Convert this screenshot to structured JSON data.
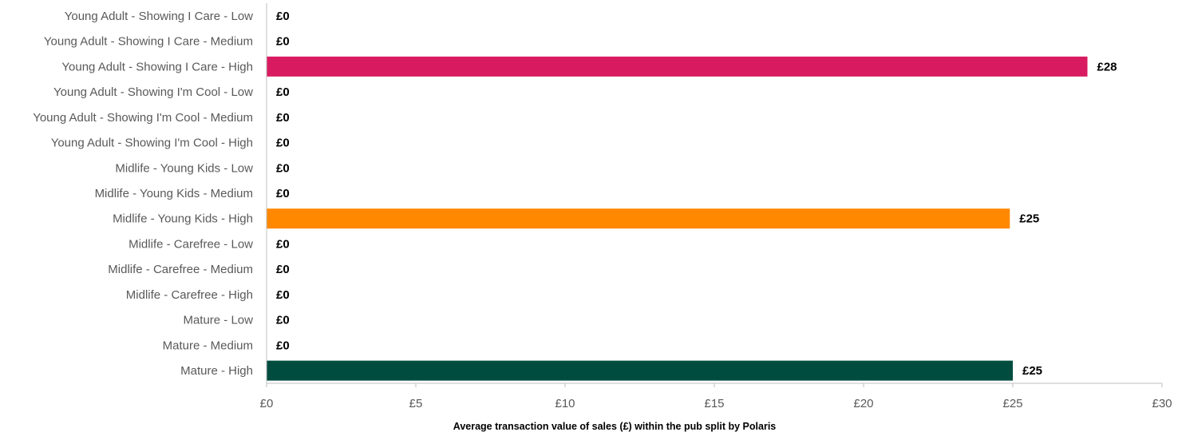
{
  "chart_data": {
    "type": "bar",
    "orientation": "horizontal",
    "title": "",
    "xlabel": "Average transaction value of sales (£) within the pub split by Polaris",
    "ylabel": "",
    "xlim": [
      0,
      30
    ],
    "x_ticks": [
      0,
      5,
      10,
      15,
      20,
      25,
      30
    ],
    "x_tick_labels": [
      "£0",
      "£5",
      "£10",
      "£15",
      "£20",
      "£25",
      "£30"
    ],
    "grid": false,
    "legend": "none",
    "categories": [
      "Young Adult - Showing I Care - Low",
      "Young Adult - Showing I Care - Medium",
      "Young Adult - Showing I Care - High",
      "Young Adult - Showing I'm Cool - Low",
      "Young Adult - Showing I'm Cool - Medium",
      "Young Adult - Showing I'm Cool - High",
      "Midlife - Young Kids - Low",
      "Midlife - Young Kids - Medium",
      "Midlife - Young Kids - High",
      "Midlife - Carefree - Low",
      "Midlife - Carefree - Medium",
      "Midlife - Carefree - High",
      "Mature - Low",
      "Mature - Medium",
      "Mature - High"
    ],
    "values": [
      0,
      0,
      27.5,
      0,
      0,
      0,
      0,
      0,
      24.9,
      0,
      0,
      0,
      0,
      0,
      25.0
    ],
    "data_labels": [
      "£0",
      "£0",
      "£28",
      "£0",
      "£0",
      "£0",
      "£0",
      "£0",
      "£25",
      "£0",
      "£0",
      "£0",
      "£0",
      "£0",
      "£25"
    ],
    "bar_colors": [
      "#d81b60",
      "#d81b60",
      "#d81b60",
      "#3a7bd5",
      "#3a7bd5",
      "#3a7bd5",
      "#ff8800",
      "#ff8800",
      "#ff8800",
      "#7cb342",
      "#7cb342",
      "#7cb342",
      "#004d40",
      "#004d40",
      "#004d40"
    ]
  }
}
